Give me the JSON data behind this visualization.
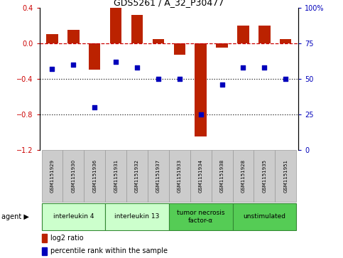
{
  "title": "GDS5261 / A_32_P30477",
  "samples": [
    "GSM1151929",
    "GSM1151930",
    "GSM1151936",
    "GSM1151931",
    "GSM1151932",
    "GSM1151937",
    "GSM1151933",
    "GSM1151934",
    "GSM1151938",
    "GSM1151928",
    "GSM1151935",
    "GSM1151951"
  ],
  "log2_ratio": [
    0.1,
    0.15,
    -0.3,
    0.4,
    0.32,
    0.05,
    -0.13,
    -1.05,
    -0.05,
    0.2,
    0.2,
    0.05
  ],
  "percentile": [
    57,
    60,
    30,
    62,
    58,
    50,
    50,
    25,
    46,
    58,
    58,
    50
  ],
  "groups": [
    {
      "label": "interleukin 4",
      "start": 0,
      "end": 2,
      "color": "#ccffcc"
    },
    {
      "label": "interleukin 13",
      "start": 3,
      "end": 5,
      "color": "#ccffcc"
    },
    {
      "label": "tumor necrosis\nfactor-α",
      "start": 6,
      "end": 8,
      "color": "#55cc55"
    },
    {
      "label": "unstimulated",
      "start": 9,
      "end": 11,
      "color": "#55cc55"
    }
  ],
  "ylim_left": [
    -1.2,
    0.4
  ],
  "ylim_right": [
    0,
    100
  ],
  "bar_color": "#bb2200",
  "dot_color": "#0000bb",
  "hline_color": "#cc0000",
  "dotted_color": "#222222",
  "bg_color": "#ffffff",
  "plot_bg": "#ffffff",
  "sample_box_color": "#cccccc",
  "sample_box_edge": "#999999",
  "legend_items": [
    "log2 ratio",
    "percentile rank within the sample"
  ]
}
